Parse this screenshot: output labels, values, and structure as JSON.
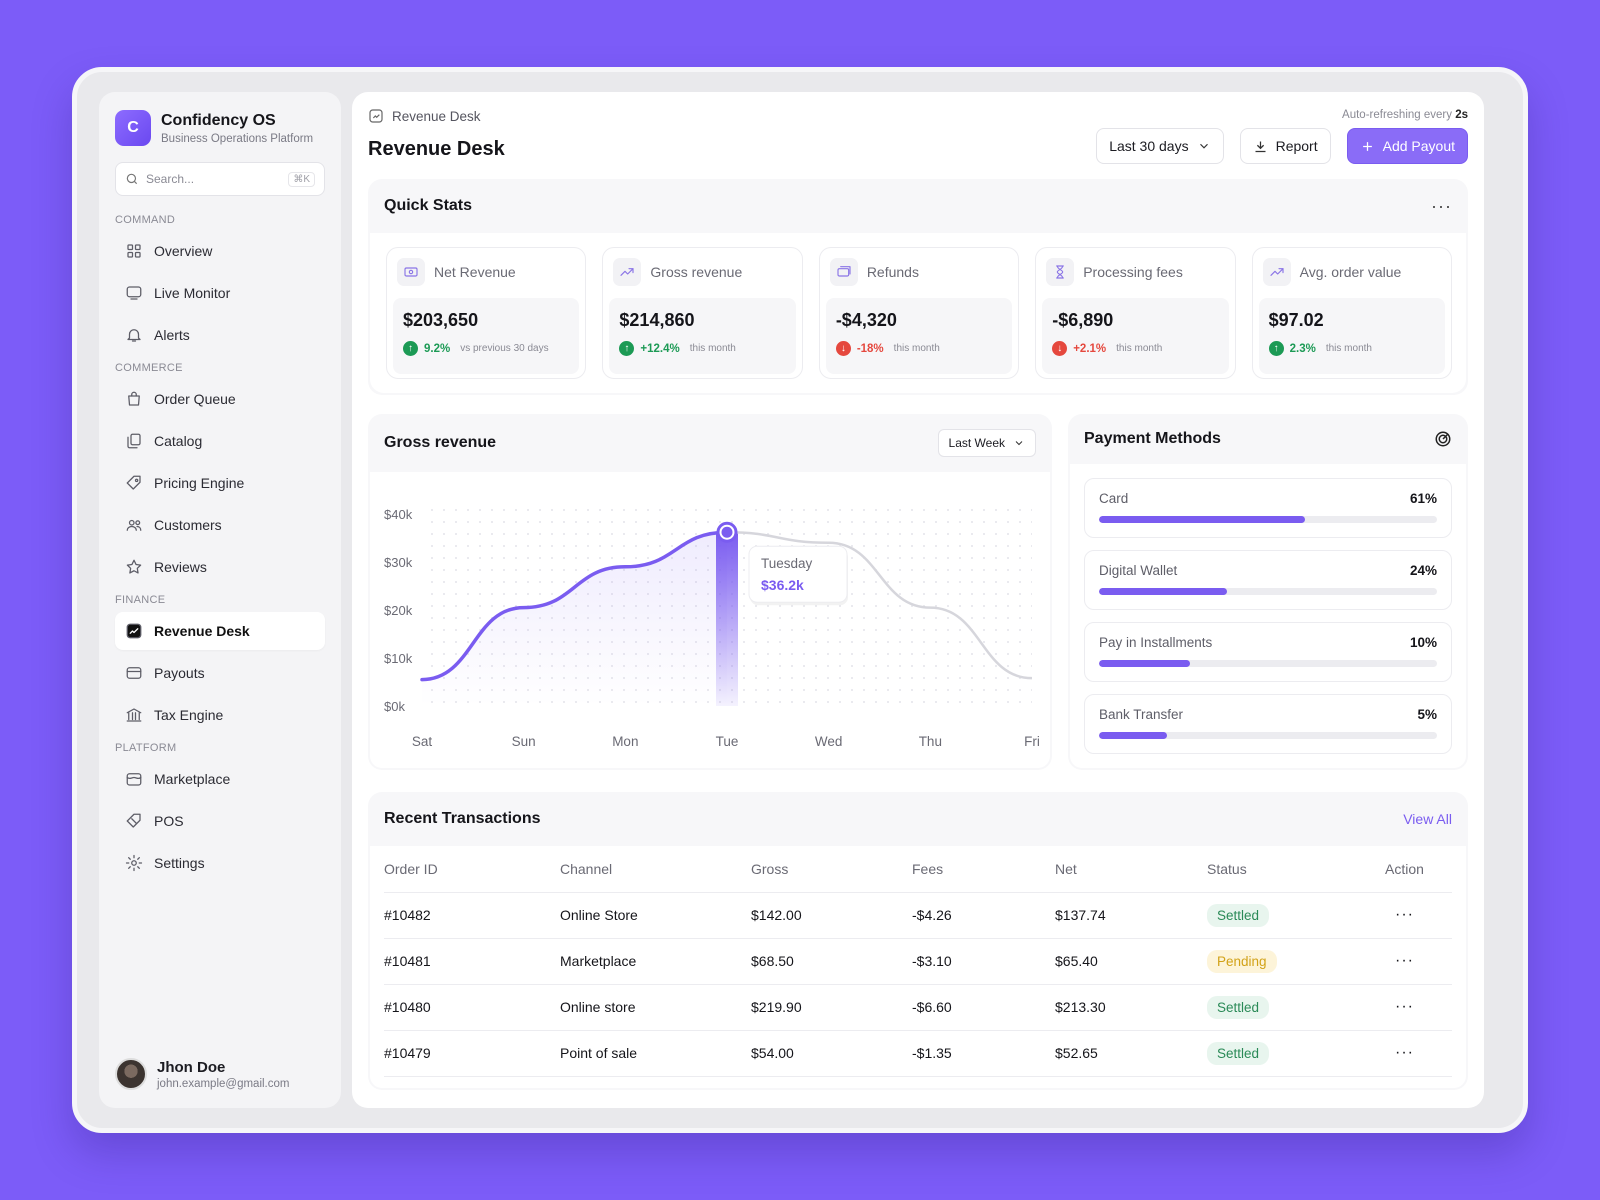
{
  "brand": {
    "logo_letter": "C",
    "name": "Confidency OS",
    "subtitle": "Business Operations Platform"
  },
  "search": {
    "placeholder": "Search...",
    "shortcut": "⌘K"
  },
  "sidebar": {
    "sections": [
      {
        "label": "COMMAND",
        "items": [
          {
            "label": "Overview",
            "icon": "grid-icon"
          },
          {
            "label": "Live Monitor",
            "icon": "monitor-icon"
          },
          {
            "label": "Alerts",
            "icon": "bell-icon"
          }
        ]
      },
      {
        "label": "COMMERCE",
        "items": [
          {
            "label": "Order Queue",
            "icon": "bag-icon"
          },
          {
            "label": "Catalog",
            "icon": "catalog-icon"
          },
          {
            "label": "Pricing Engine",
            "icon": "tag-icon"
          },
          {
            "label": "Customers",
            "icon": "users-icon"
          },
          {
            "label": "Reviews",
            "icon": "star-icon"
          }
        ]
      },
      {
        "label": "FINANCE",
        "items": [
          {
            "label": "Revenue Desk",
            "icon": "chart-box-icon",
            "active": true
          },
          {
            "label": "Payouts",
            "icon": "card-icon"
          },
          {
            "label": "Tax Engine",
            "icon": "bank-icon"
          }
        ]
      },
      {
        "label": "PLATFORM",
        "items": [
          {
            "label": "Marketplace",
            "icon": "store-icon"
          },
          {
            "label": "POS",
            "icon": "pos-icon"
          },
          {
            "label": "Settings",
            "icon": "gear-icon"
          }
        ]
      }
    ]
  },
  "user": {
    "name": "Jhon Doe",
    "email": "john.example@gmail.com"
  },
  "header": {
    "breadcrumb": "Revenue Desk",
    "title": "Revenue Desk",
    "autorefresh_prefix": "Auto-refreshing every",
    "autorefresh_value": "2s",
    "range": "Last 30 days",
    "report": "Report",
    "add_payout": "Add Payout"
  },
  "quick_stats": {
    "title": "Quick Stats",
    "items": [
      {
        "label": "Net Revenue",
        "value": "$203,650",
        "trend": "up",
        "pct": "9.2%",
        "note": "vs previous 30 days"
      },
      {
        "label": "Gross revenue",
        "value": "$214,860",
        "trend": "up",
        "pct": "+12.4%",
        "note": "this month"
      },
      {
        "label": "Refunds",
        "value": "-$4,320",
        "trend": "down",
        "pct": "-18%",
        "note": "this month"
      },
      {
        "label": "Processing fees",
        "value": "-$6,890",
        "trend": "down",
        "pct": "+2.1%",
        "note": "this month"
      },
      {
        "label": "Avg. order value",
        "value": "$97.02",
        "trend": "up",
        "pct": "2.3%",
        "note": "this month"
      }
    ]
  },
  "gross_revenue": {
    "title": "Gross revenue",
    "period": "Last Week"
  },
  "chart_data": {
    "type": "line",
    "title": "Gross revenue",
    "categories": [
      "Sat",
      "Sun",
      "Mon",
      "Tue",
      "Wed",
      "Thu",
      "Fri"
    ],
    "y_ticks": [
      "$0k",
      "$10k",
      "$20k",
      "$30k",
      "$40k"
    ],
    "ylim": [
      0,
      40000
    ],
    "series": [
      {
        "values": [
          5500,
          20500,
          29000,
          36200,
          34000,
          20500,
          5800
        ]
      }
    ],
    "highlight": {
      "category": "Tue",
      "label": "Tuesday",
      "value_label": "$36.2k"
    },
    "accent_color": "#7a5cf0"
  },
  "payment_methods": {
    "title": "Payment Methods",
    "items": [
      {
        "label": "Card",
        "value": "61%",
        "fraction": 0.61
      },
      {
        "label": "Digital Wallet",
        "value": "24%",
        "fraction": 0.38
      },
      {
        "label": "Pay in Installments",
        "value": "10%",
        "fraction": 0.27
      },
      {
        "label": "Bank Transfer",
        "value": "5%",
        "fraction": 0.2
      }
    ]
  },
  "transactions": {
    "title": "Recent Transactions",
    "view_all": "View All",
    "columns": [
      "Order ID",
      "Channel",
      "Gross",
      "Fees",
      "Net",
      "Status",
      "Action"
    ],
    "rows": [
      {
        "id": "#10482",
        "channel": "Online Store",
        "gross": "$142.00",
        "fees": "-$4.26",
        "net": "$137.74",
        "status": "Settled"
      },
      {
        "id": "#10481",
        "channel": "Marketplace",
        "gross": "$68.50",
        "fees": "-$3.10",
        "net": "$65.40",
        "status": "Pending"
      },
      {
        "id": "#10480",
        "channel": "Online store",
        "gross": "$219.90",
        "fees": "-$6.60",
        "net": "$213.30",
        "status": "Settled"
      },
      {
        "id": "#10479",
        "channel": "Point of sale",
        "gross": "$54.00",
        "fees": "-$1.35",
        "net": "$52.65",
        "status": "Settled"
      }
    ]
  }
}
